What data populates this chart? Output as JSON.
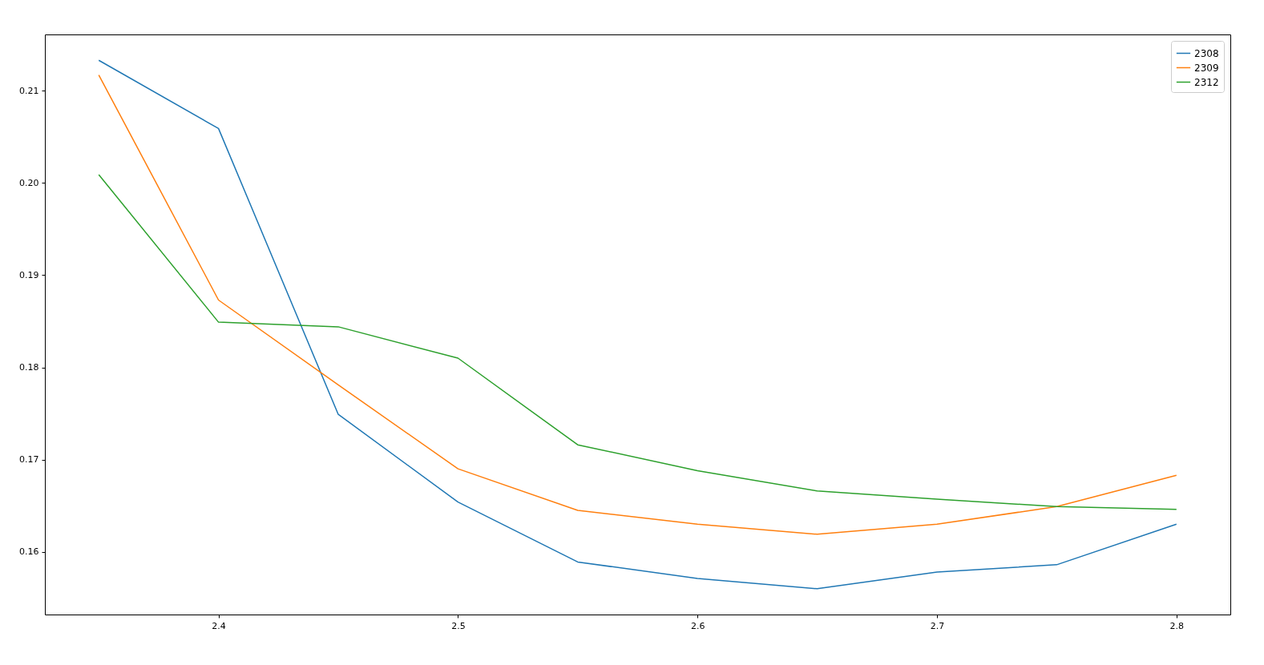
{
  "chart_data": {
    "type": "line",
    "x": [
      2.35,
      2.4,
      2.45,
      2.5,
      2.55,
      2.6,
      2.65,
      2.7,
      2.75,
      2.8
    ],
    "series": [
      {
        "name": "2308",
        "color": "#1f77b4",
        "values": [
          0.2133,
          0.2059,
          0.1749,
          0.1654,
          0.1589,
          0.1571,
          0.156,
          0.1578,
          0.1586,
          0.163
        ]
      },
      {
        "name": "2309",
        "color": "#ff7f0e",
        "values": [
          0.2117,
          0.1873,
          0.1781,
          0.169,
          0.1645,
          0.163,
          0.1619,
          0.163,
          0.1649,
          0.1683
        ]
      },
      {
        "name": "2312",
        "color": "#2ca02c",
        "values": [
          0.2009,
          0.1849,
          0.1844,
          0.181,
          0.1716,
          0.1688,
          0.1666,
          0.1657,
          0.1649,
          0.1646
        ]
      }
    ],
    "xlim": [
      2.3275,
      2.8225
    ],
    "ylim": [
      0.1532,
      0.2161
    ],
    "xticks": [
      2.4,
      2.5,
      2.6,
      2.7,
      2.8
    ],
    "yticks": [
      0.16,
      0.17,
      0.18,
      0.19,
      {
        "value": 0.2,
        "label": "0.20"
      },
      0.21
    ],
    "legend": "top right",
    "grid": false,
    "marker": "none",
    "line_style": "solid"
  }
}
